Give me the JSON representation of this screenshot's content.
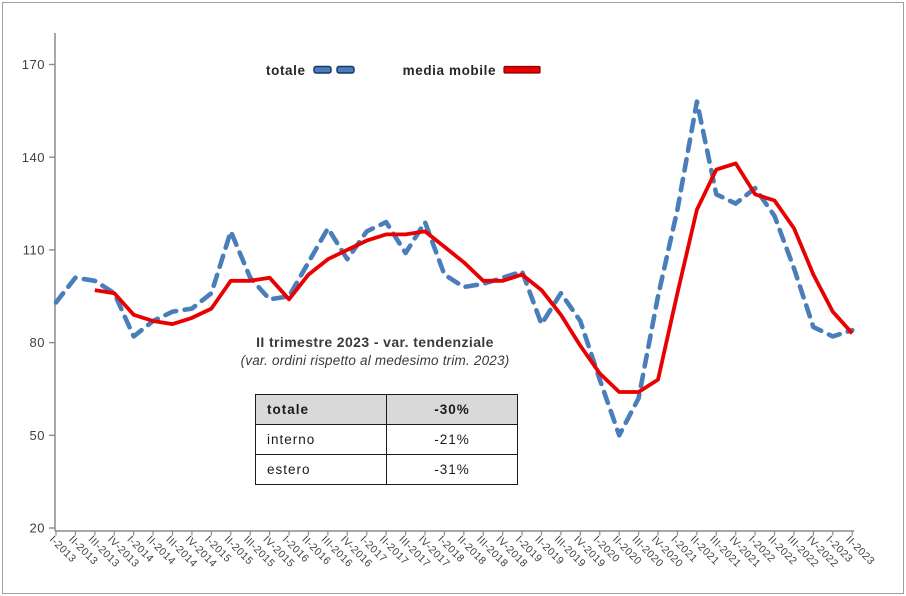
{
  "legend": {
    "totale_label": "totale",
    "media_mobile_label": "media mobile"
  },
  "annotation": {
    "title": "II trimestre 2023 - var. tendenziale",
    "subtitle": "(var. ordini rispetto al medesimo trim. 2023)"
  },
  "summary_table": {
    "rows": [
      {
        "label": "totale",
        "value": "-30%"
      },
      {
        "label": "interno",
        "value": "-21%"
      },
      {
        "label": "estero",
        "value": "-31%"
      }
    ]
  },
  "colors": {
    "totale": "#4a7ebb",
    "totale_border": "#17375e",
    "media_mobile": "#e90000",
    "media_mobile_border": "#8b0000",
    "axis": "#8c8c8c",
    "tick_text": "#404040"
  },
  "chart_data": {
    "type": "line",
    "title": "",
    "xlabel": "",
    "ylabel": "",
    "ylim": [
      20,
      170
    ],
    "yticks": [
      20,
      50,
      80,
      110,
      140,
      170
    ],
    "grid": false,
    "legend_position": "top",
    "categories": [
      "I-2013",
      "II-2013",
      "III-2013",
      "IV-2013",
      "I-2014",
      "II-2014",
      "III-2014",
      "IV-2014",
      "I-2015",
      "II-2015",
      "III-2015",
      "IV-2015",
      "I-2016",
      "II-2016",
      "III-2016",
      "IV-2016",
      "I-2017",
      "II-2017",
      "III-2017",
      "IV-2017",
      "I-2018",
      "II-2018",
      "III-2018",
      "IV-2018",
      "I-2019",
      "II-2019",
      "III-2019",
      "IV-2019",
      "I-2020",
      "II-2020",
      "III-2020",
      "IV-2020",
      "I-2021",
      "II-2021",
      "III-2021",
      "IV-2021",
      "I-2022",
      "II-2022",
      "III-2022",
      "IV-2022",
      "I-2023",
      "II-2023"
    ],
    "series": [
      {
        "name": "totale",
        "style": "dashed",
        "values": [
          93,
          101,
          100,
          96,
          82,
          87,
          90,
          91,
          96,
          116,
          101,
          94,
          95,
          106,
          117,
          107,
          116,
          119,
          109,
          119,
          102,
          98,
          99,
          101,
          103,
          86,
          96,
          87,
          68,
          50,
          62,
          95,
          123,
          158,
          128,
          125,
          130,
          121,
          104,
          85,
          82,
          84
        ]
      },
      {
        "name": "media mobile",
        "style": "solid",
        "values": [
          null,
          null,
          97,
          96,
          89,
          87,
          86,
          88,
          91,
          100,
          100,
          101,
          94,
          102,
          107,
          110,
          113,
          115,
          115,
          116,
          111,
          106,
          100,
          100,
          102,
          97,
          89,
          79,
          70,
          64,
          64,
          68,
          96,
          123,
          136,
          138,
          128,
          126,
          117,
          102,
          90,
          83
        ]
      }
    ]
  }
}
